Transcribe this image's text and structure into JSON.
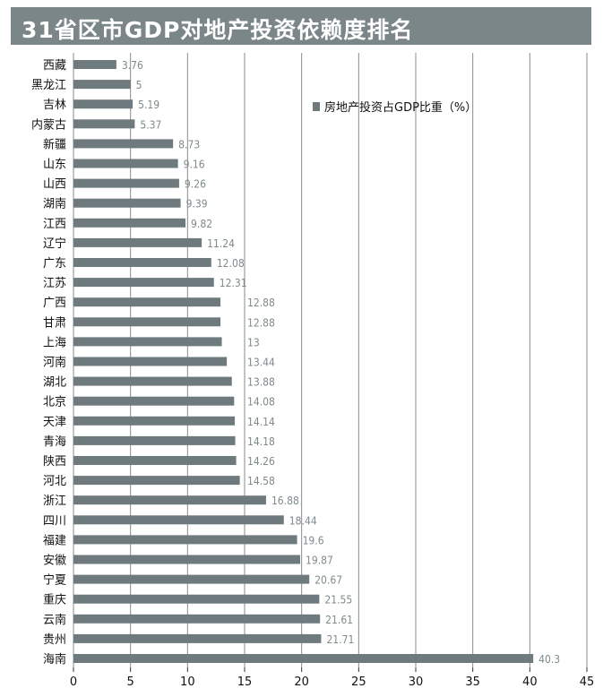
{
  "chart_data": {
    "type": "bar",
    "orientation": "horizontal",
    "title": "31省区市GDP对地产投资依赖度排名",
    "categories": [
      "西藏",
      "黑龙江",
      "吉林",
      "内蒙古",
      "新疆",
      "山东",
      "山西",
      "湖南",
      "江西",
      "辽宁",
      "广东",
      "江苏",
      "广西",
      "甘肃",
      "上海",
      "河南",
      "湖北",
      "北京",
      "天津",
      "青海",
      "陕西",
      "河北",
      "浙江",
      "四川",
      "福建",
      "安徽",
      "宁夏",
      "重庆",
      "云南",
      "贵州",
      "海南"
    ],
    "series": [
      {
        "name": "房地产投资占GDP比重（%）",
        "values": [
          3.76,
          5,
          5.19,
          5.37,
          8.73,
          9.16,
          9.26,
          9.39,
          9.82,
          11.24,
          12.08,
          12.31,
          12.88,
          12.88,
          13,
          13.44,
          13.88,
          14.08,
          14.14,
          14.18,
          14.26,
          14.58,
          16.88,
          18.44,
          19.6,
          19.87,
          20.67,
          21.55,
          21.61,
          21.71,
          40.3
        ],
        "value_labels": [
          "3.76",
          "5",
          "5.19",
          "5.37",
          "8.73",
          "9.16",
          "9.26",
          "9.39",
          "9.82",
          "11.24",
          "12.08",
          "12.31",
          "12.88",
          "12.88",
          "13",
          "13.44",
          "13.88",
          "14.08",
          "14.14",
          "14.18",
          "14.26",
          "14.58",
          "16.88",
          "18.44",
          "19.6",
          "19.87",
          "20.67",
          "21.55",
          "21.61",
          "21.71",
          "40.3"
        ]
      }
    ],
    "xlim": [
      0,
      45
    ],
    "xticks": [
      "0",
      "5",
      "10",
      "15",
      "20",
      "25",
      "30",
      "35",
      "40",
      "45"
    ],
    "grid": "vertical",
    "legend_position": "top-right",
    "colors": {
      "bar": "#6f7a7e",
      "title_bg": "#7b8689",
      "grid": "#8a8a8a",
      "value_label": "#7f8a8d"
    }
  }
}
